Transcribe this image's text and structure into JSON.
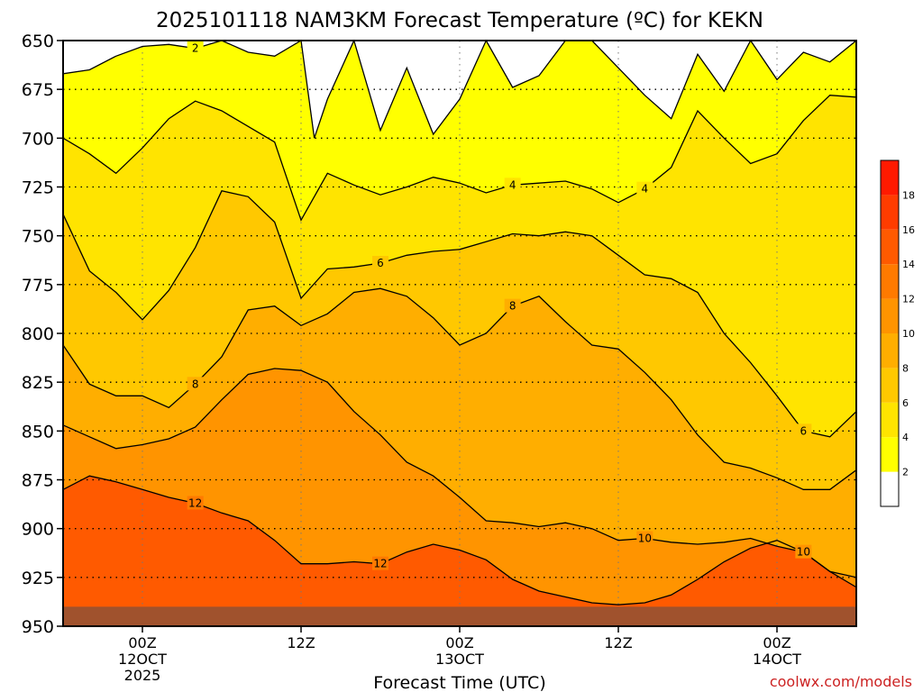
{
  "chart_data": {
    "type": "heatmap",
    "title": "2025101118 NAM3KM Forecast Temperature (ºC) for KEKN",
    "xlabel": "Forecast Time (UTC)",
    "ylabel": "",
    "y_axis": "pressure (hPa), inverted, top 650 bottom 950",
    "ylim": [
      950,
      650
    ],
    "y_ticks": [
      "650",
      "675",
      "700",
      "725",
      "750",
      "775",
      "800",
      "825",
      "850",
      "875",
      "900",
      "925",
      "950"
    ],
    "x_ticks": [
      {
        "hour": 6,
        "lines": [
          "00Z",
          "12OCT",
          "2025"
        ]
      },
      {
        "hour": 18,
        "lines": [
          "12Z"
        ]
      },
      {
        "hour": 30,
        "lines": [
          "00Z",
          "13OCT"
        ]
      },
      {
        "hour": 42,
        "lines": [
          "12Z"
        ]
      },
      {
        "hour": 54,
        "lines": [
          "00Z",
          "14OCT"
        ]
      }
    ],
    "xlim": [
      0,
      60
    ],
    "grid": true,
    "surface_level_hpa": 940,
    "color_levels": [
      {
        "min": null,
        "max": 2,
        "color": "#ffffff"
      },
      {
        "min": 2,
        "max": 4,
        "color": "#ffff00"
      },
      {
        "min": 4,
        "max": 6,
        "color": "#ffe400"
      },
      {
        "min": 6,
        "max": 8,
        "color": "#ffc800"
      },
      {
        "min": 8,
        "max": 10,
        "color": "#ffae00"
      },
      {
        "min": 10,
        "max": 12,
        "color": "#ff9400"
      },
      {
        "min": 12,
        "max": 14,
        "color": "#ff7a00"
      },
      {
        "min": 14,
        "max": 16,
        "color": "#ff5a00"
      },
      {
        "min": 16,
        "max": 18,
        "color": "#ff3c00"
      },
      {
        "min": 18,
        "max": null,
        "color": "#ff1a00"
      }
    ],
    "colorbar_labels": [
      "2",
      "4",
      "6",
      "8",
      "10",
      "12",
      "14",
      "16",
      "18"
    ],
    "contours": [
      {
        "value": 2,
        "label": "2",
        "points": [
          [
            0,
            667
          ],
          [
            2,
            665
          ],
          [
            4,
            658
          ],
          [
            6,
            653
          ],
          [
            8,
            652
          ],
          [
            10,
            654
          ],
          [
            12,
            650
          ],
          [
            14,
            656
          ],
          [
            16,
            658
          ],
          [
            18,
            650
          ],
          [
            19,
            700
          ],
          [
            20,
            680
          ],
          [
            22,
            650
          ],
          [
            24,
            696
          ],
          [
            26,
            664
          ],
          [
            28,
            698
          ],
          [
            30,
            680
          ],
          [
            32,
            650
          ],
          [
            34,
            674
          ],
          [
            36,
            668
          ],
          [
            38,
            650
          ],
          [
            40,
            650
          ],
          [
            42,
            664
          ],
          [
            44,
            678
          ],
          [
            46,
            690
          ],
          [
            48,
            657
          ],
          [
            50,
            676
          ],
          [
            52,
            650
          ],
          [
            54,
            670
          ],
          [
            56,
            656
          ],
          [
            58,
            661
          ],
          [
            60,
            650
          ]
        ]
      },
      {
        "value": 4,
        "label": "4",
        "points": [
          [
            0,
            700
          ],
          [
            2,
            708
          ],
          [
            4,
            718
          ],
          [
            6,
            705
          ],
          [
            8,
            690
          ],
          [
            10,
            681
          ],
          [
            12,
            686
          ],
          [
            14,
            694
          ],
          [
            16,
            702
          ],
          [
            18,
            742
          ],
          [
            20,
            718
          ],
          [
            22,
            724
          ],
          [
            24,
            729
          ],
          [
            26,
            725
          ],
          [
            28,
            720
          ],
          [
            30,
            723
          ],
          [
            32,
            728
          ],
          [
            34,
            724
          ],
          [
            36,
            723
          ],
          [
            38,
            722
          ],
          [
            40,
            726
          ],
          [
            42,
            733
          ],
          [
            44,
            726
          ],
          [
            46,
            715
          ],
          [
            48,
            686
          ],
          [
            50,
            700
          ],
          [
            52,
            713
          ],
          [
            54,
            708
          ],
          [
            56,
            691
          ],
          [
            58,
            678
          ],
          [
            60,
            679
          ]
        ]
      },
      {
        "value": 6,
        "label": "6",
        "points": [
          [
            0,
            739
          ],
          [
            2,
            768
          ],
          [
            4,
            779
          ],
          [
            6,
            793
          ],
          [
            8,
            778
          ],
          [
            10,
            756
          ],
          [
            12,
            727
          ],
          [
            14,
            730
          ],
          [
            16,
            743
          ],
          [
            18,
            782
          ],
          [
            20,
            767
          ],
          [
            22,
            766
          ],
          [
            24,
            764
          ],
          [
            26,
            760
          ],
          [
            28,
            758
          ],
          [
            30,
            757
          ],
          [
            32,
            753
          ],
          [
            34,
            749
          ],
          [
            36,
            750
          ],
          [
            38,
            748
          ],
          [
            40,
            750
          ],
          [
            42,
            760
          ],
          [
            44,
            770
          ],
          [
            46,
            772
          ],
          [
            48,
            779
          ],
          [
            50,
            800
          ],
          [
            52,
            815
          ],
          [
            54,
            832
          ],
          [
            56,
            850
          ],
          [
            58,
            853
          ],
          [
            60,
            840
          ]
        ]
      },
      {
        "value": 8,
        "label": "8",
        "points": [
          [
            0,
            806
          ],
          [
            2,
            826
          ],
          [
            4,
            832
          ],
          [
            6,
            832
          ],
          [
            8,
            838
          ],
          [
            10,
            826
          ],
          [
            12,
            812
          ],
          [
            14,
            788
          ],
          [
            16,
            786
          ],
          [
            18,
            796
          ],
          [
            20,
            790
          ],
          [
            22,
            779
          ],
          [
            24,
            777
          ],
          [
            26,
            781
          ],
          [
            28,
            792
          ],
          [
            30,
            806
          ],
          [
            32,
            800
          ],
          [
            34,
            786
          ],
          [
            36,
            781
          ],
          [
            38,
            794
          ],
          [
            40,
            806
          ],
          [
            42,
            808
          ],
          [
            44,
            820
          ],
          [
            46,
            834
          ],
          [
            48,
            852
          ],
          [
            50,
            866
          ],
          [
            52,
            869
          ],
          [
            54,
            874
          ],
          [
            56,
            880
          ],
          [
            58,
            880
          ],
          [
            60,
            870
          ]
        ]
      },
      {
        "value": 10,
        "label": "10",
        "points": [
          [
            0,
            847
          ],
          [
            2,
            853
          ],
          [
            4,
            859
          ],
          [
            6,
            857
          ],
          [
            8,
            854
          ],
          [
            10,
            848
          ],
          [
            12,
            834
          ],
          [
            14,
            821
          ],
          [
            16,
            818
          ],
          [
            18,
            819
          ],
          [
            20,
            825
          ],
          [
            22,
            840
          ],
          [
            24,
            852
          ],
          [
            26,
            866
          ],
          [
            28,
            873
          ],
          [
            30,
            884
          ],
          [
            32,
            896
          ],
          [
            34,
            897
          ],
          [
            36,
            899
          ],
          [
            38,
            897
          ],
          [
            40,
            900
          ],
          [
            42,
            906
          ],
          [
            44,
            905
          ],
          [
            46,
            907
          ],
          [
            48,
            908
          ],
          [
            50,
            907
          ],
          [
            52,
            905
          ],
          [
            54,
            909
          ],
          [
            56,
            912
          ],
          [
            58,
            922
          ],
          [
            60,
            925
          ]
        ]
      },
      {
        "value": 12,
        "label": "12",
        "points": [
          [
            0,
            880
          ],
          [
            2,
            873
          ],
          [
            4,
            876
          ],
          [
            6,
            880
          ],
          [
            8,
            884
          ],
          [
            10,
            887
          ],
          [
            12,
            892
          ],
          [
            14,
            896
          ],
          [
            16,
            906
          ],
          [
            18,
            918
          ],
          [
            20,
            918
          ],
          [
            22,
            917
          ],
          [
            24,
            918
          ],
          [
            26,
            912
          ],
          [
            28,
            908
          ],
          [
            30,
            911
          ],
          [
            32,
            916
          ],
          [
            34,
            926
          ],
          [
            36,
            932
          ],
          [
            38,
            935
          ],
          [
            40,
            938
          ],
          [
            42,
            939
          ],
          [
            44,
            938
          ],
          [
            46,
            934
          ],
          [
            48,
            926
          ],
          [
            50,
            917
          ],
          [
            52,
            910
          ],
          [
            54,
            906
          ],
          [
            56,
            912
          ],
          [
            58,
            922
          ],
          [
            60,
            930
          ]
        ]
      }
    ]
  },
  "site": "coolwx.com/models"
}
